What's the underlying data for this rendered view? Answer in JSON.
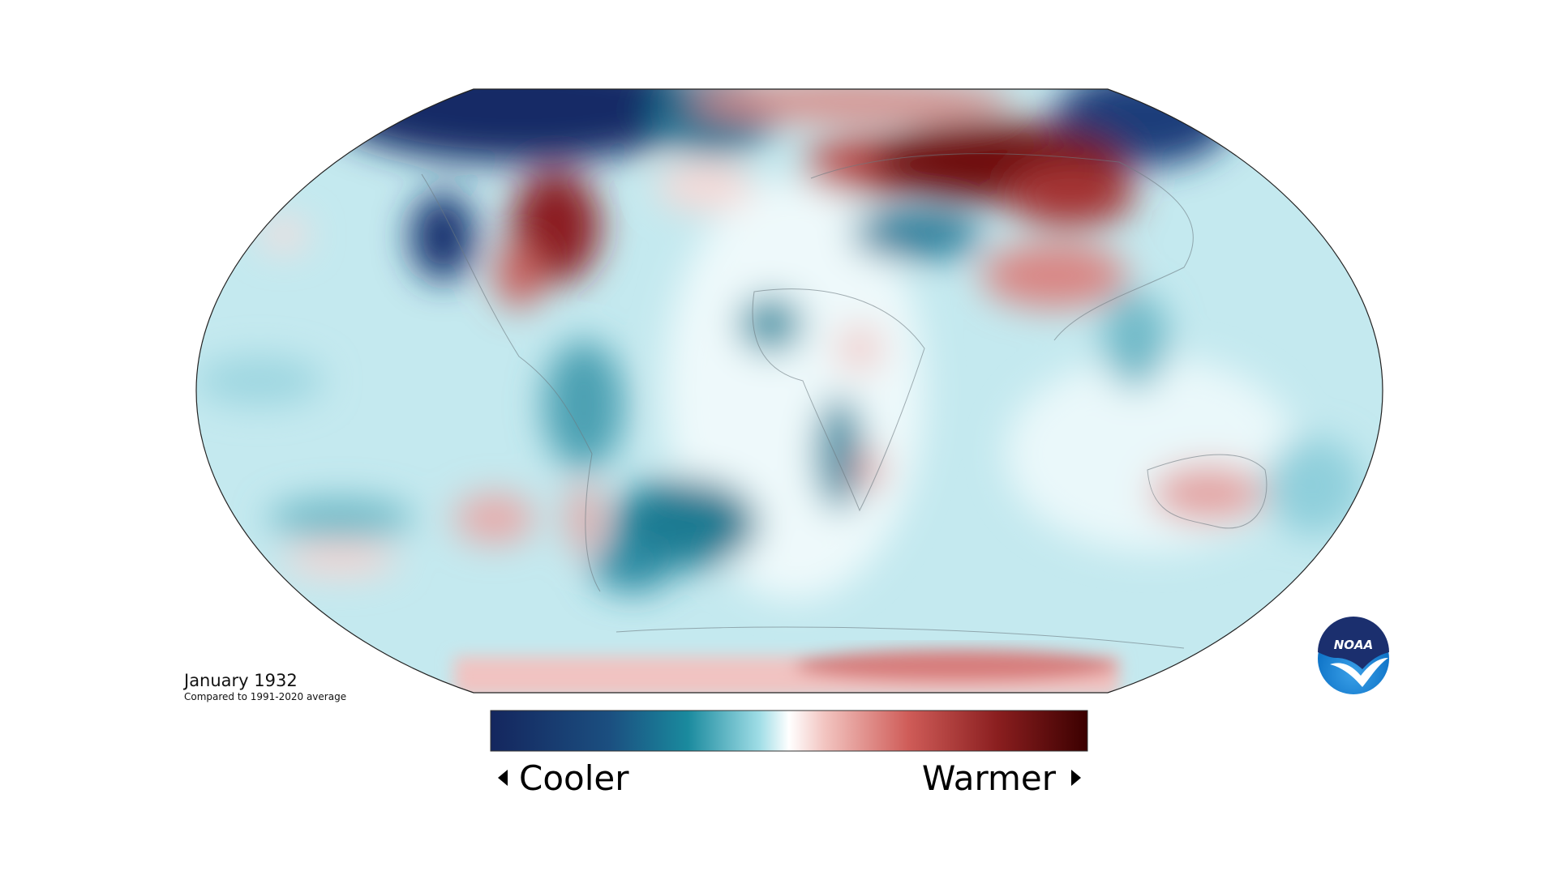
{
  "map": {
    "title": "January 1932",
    "subtitle": "Compared to 1991-2020 average"
  },
  "legend": {
    "low_label": "Cooler",
    "high_label": "Warmer"
  },
  "logo": {
    "text": "NOAA"
  }
}
